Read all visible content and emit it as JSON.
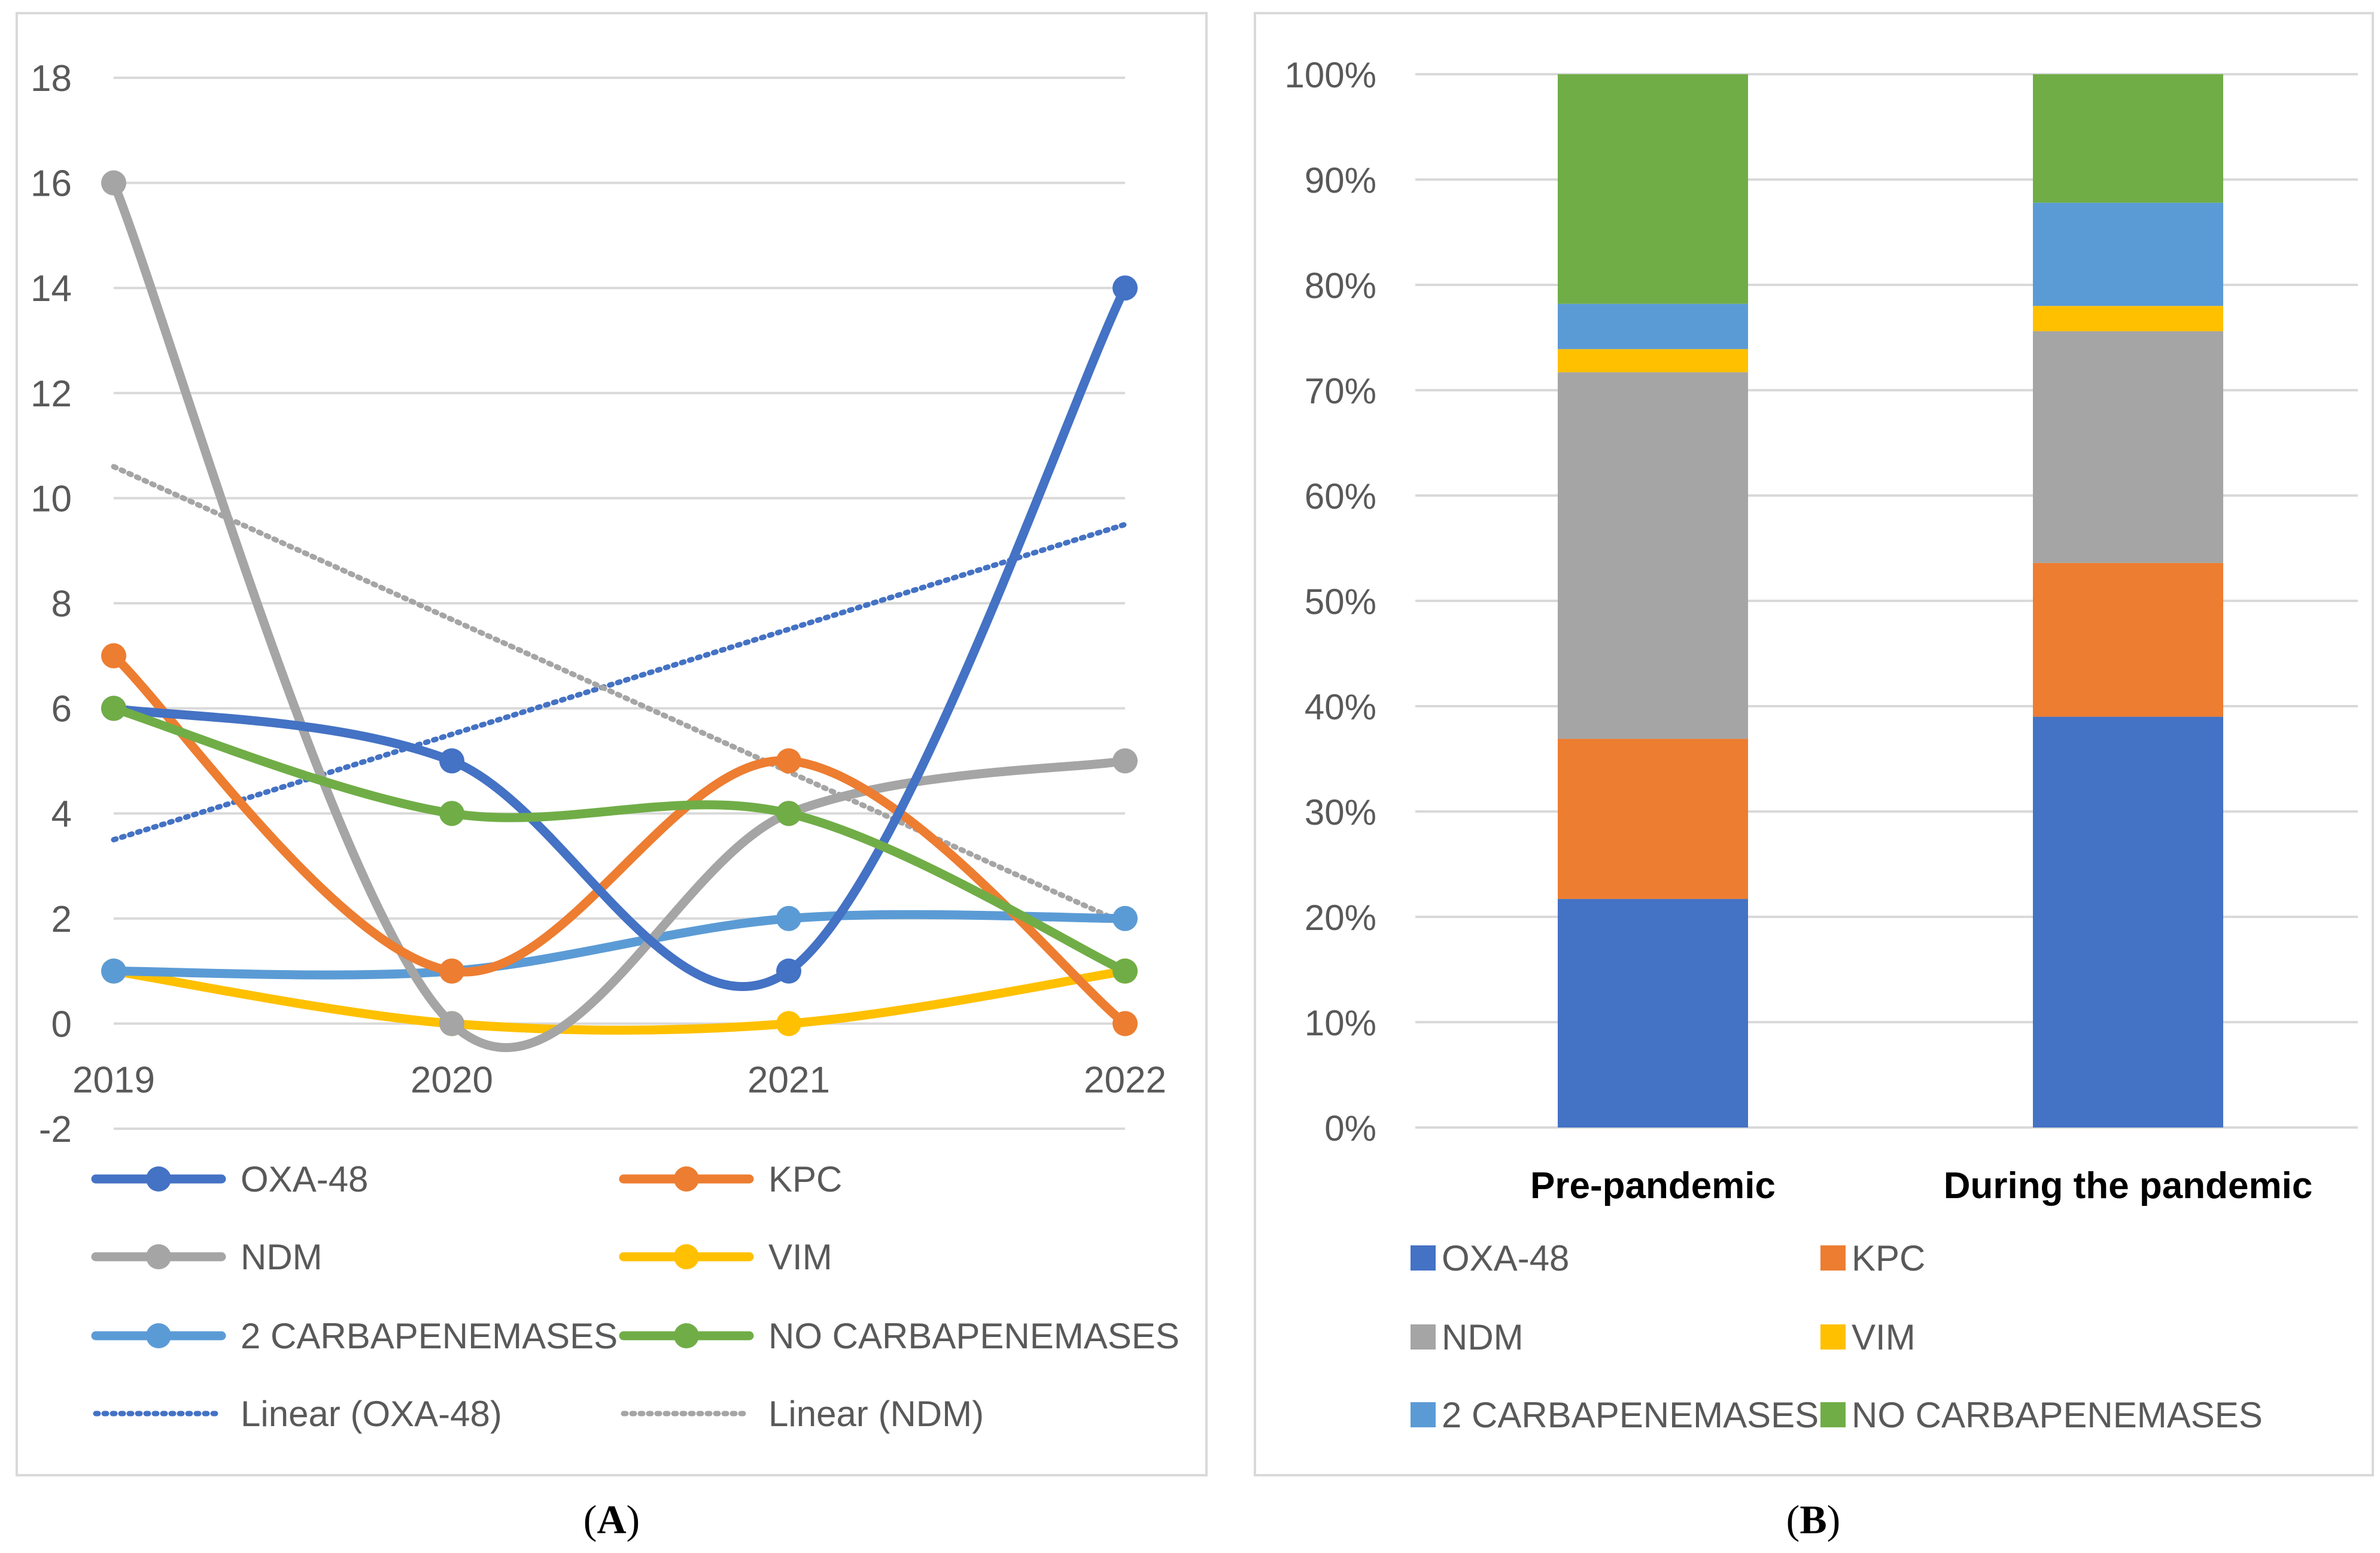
{
  "chart_data": [
    {
      "panel": "A",
      "type": "line",
      "x": [
        "2019",
        "2020",
        "2021",
        "2022"
      ],
      "ylim": [
        -2,
        18
      ],
      "yticks": [
        "-2",
        "0",
        "2",
        "4",
        "6",
        "8",
        "10",
        "12",
        "14",
        "16",
        "18"
      ],
      "grid": true,
      "series": [
        {
          "name": "OXA-48",
          "values": [
            6,
            5,
            1,
            14
          ],
          "color": "#4472C4"
        },
        {
          "name": "KPC",
          "values": [
            7,
            1,
            5,
            0
          ],
          "color": "#ED7D31"
        },
        {
          "name": "NDM",
          "values": [
            16,
            0,
            4,
            5
          ],
          "color": "#A5A5A5"
        },
        {
          "name": "VIM",
          "values": [
            1,
            0,
            0,
            1
          ],
          "color": "#FFC000"
        },
        {
          "name": "2 CARBAPENEMASES",
          "values": [
            1,
            1,
            2,
            2
          ],
          "color": "#5B9BD5"
        },
        {
          "name": "NO CARBAPENEMASES",
          "values": [
            6,
            4,
            4,
            1
          ],
          "color": "#70AD47"
        }
      ],
      "trendlines": [
        {
          "name": "Linear (OXA-48)",
          "values": [
            3.5,
            5.5,
            7.5,
            9.5
          ],
          "color": "#4472C4"
        },
        {
          "name": "Linear (NDM)",
          "values": [
            10.6,
            7.7,
            4.8,
            1.9
          ],
          "color": "#A5A5A5"
        }
      ],
      "legend_position": "bottom",
      "caption": "A"
    },
    {
      "panel": "B",
      "type": "bar",
      "stacked": true,
      "percent": true,
      "categories": [
        "Pre-pandemic",
        "During the pandemic"
      ],
      "ylim": [
        0,
        100
      ],
      "yticks": [
        "0%",
        "10%",
        "20%",
        "30%",
        "40%",
        "50%",
        "60%",
        "70%",
        "80%",
        "90%",
        "100%"
      ],
      "grid": true,
      "series": [
        {
          "name": "OXA-48",
          "values": [
            21.7,
            39.0
          ],
          "color": "#4472C4"
        },
        {
          "name": "KPC",
          "values": [
            15.2,
            14.6
          ],
          "color": "#ED7D31"
        },
        {
          "name": "NDM",
          "values": [
            34.8,
            22.0
          ],
          "color": "#A5A5A5"
        },
        {
          "name": "VIM",
          "values": [
            2.2,
            2.4
          ],
          "color": "#FFC000"
        },
        {
          "name": "2 CARBAPENEMASES",
          "values": [
            4.3,
            9.8
          ],
          "color": "#5B9BD5"
        },
        {
          "name": "NO CARBAPENEMASES",
          "values": [
            21.8,
            12.2
          ],
          "color": "#70AD47"
        }
      ],
      "legend_position": "bottom",
      "caption": "B"
    }
  ]
}
